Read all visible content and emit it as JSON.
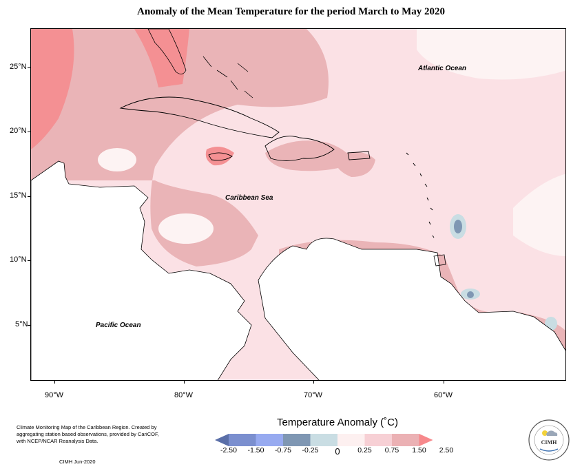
{
  "title": "Anomaly of the Mean Temperature for the period March to May 2020",
  "map": {
    "labels": {
      "atlantic": "Atlantic Ocean",
      "caribbean": "Caribbean Sea",
      "pacific": "Pacific Ocean"
    },
    "lat_ticks": [
      "25°N",
      "20°N",
      "15°N",
      "10°N",
      "5°N"
    ],
    "lon_ticks": [
      "90°W",
      "80°W",
      "70°W",
      "60°W"
    ]
  },
  "legend": {
    "title": "Temperature Anomaly (˚C)",
    "colors": [
      "#5a6fa8",
      "#7b8fcf",
      "#97aaf0",
      "#7f97b3",
      "#c9dde3",
      "#fdf0f0",
      "#f7d0d5",
      "#ebb1b4",
      "#f7898c"
    ],
    "labels": [
      "-2.50",
      "-1.50",
      "-0.75",
      "-0.25",
      "0",
      "0.25",
      "0.75",
      "1.50",
      "2.50"
    ]
  },
  "footer": {
    "description": "Climate Monitoring Map of the Caribbean Region. Created by aggregating station based observations, provided by CariCOF, with NCEP/NCAR Reanalysis Data.",
    "credit": "CIMH Jun-2020"
  },
  "logo": {
    "text": "CIMH"
  }
}
